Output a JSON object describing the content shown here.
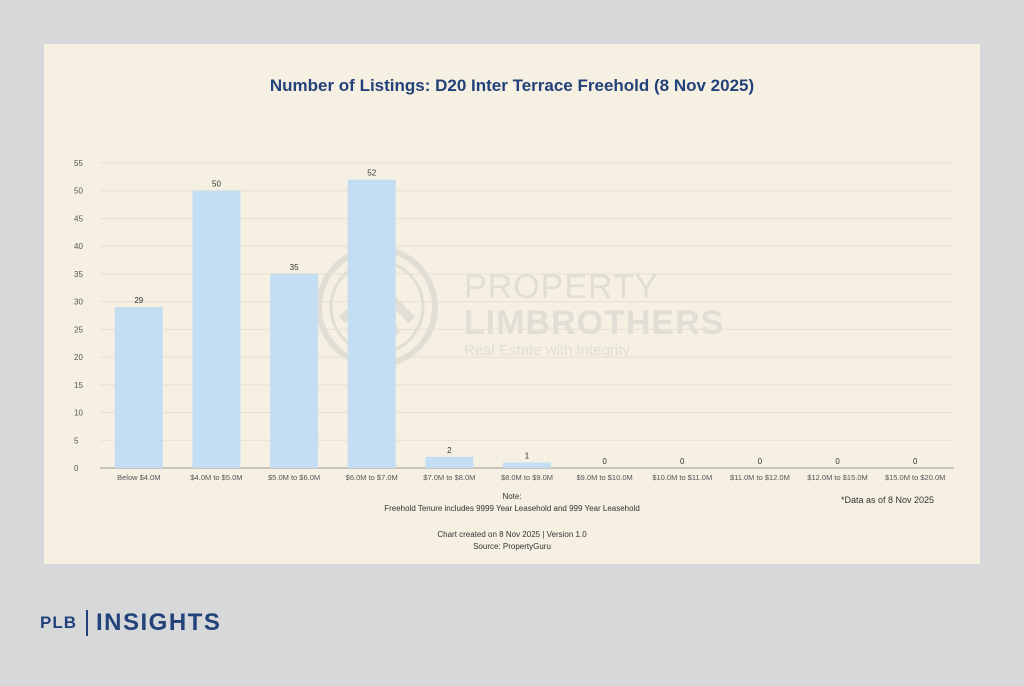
{
  "colors": {
    "bar": "#c3ddf3",
    "title": "#23427a",
    "panel_bg": "#f6f0e3",
    "page_bg": "#d6d8da",
    "grid": "#e6e0d3",
    "axis_text": "#555555"
  },
  "chart_data": {
    "type": "bar",
    "title": "Number of Listings: D20 Inter Terrace Freehold (8 Nov 2025)",
    "categories": [
      "Below $4.0M",
      "$4.0M to $5.0M",
      "$5.0M to $6.0M",
      "$6.0M to $7.0M",
      "$7.0M to $8.0M",
      "$8.0M to $9.0M",
      "$9.0M to $10.0M",
      "$10.0M to $11.0M",
      "$11.0M to $12.0M",
      "$12.0M to $15.0M",
      "$15.0M to $20.0M"
    ],
    "values": [
      29,
      50,
      35,
      52,
      2,
      1,
      0,
      0,
      0,
      0,
      0
    ],
    "ylim": [
      0,
      55
    ],
    "yticks": [
      0,
      5,
      10,
      15,
      20,
      25,
      30,
      35,
      40,
      45,
      50,
      55
    ],
    "grid": true,
    "legend": "none",
    "data_labels": true
  },
  "notes": {
    "heading": "Note:",
    "tenure": "Freehold Tenure includes 9999 Year Leasehold and 999 Year Leasehold",
    "created": "Chart created on 8 Nov 2025 | Version 1.0",
    "source": "Source: PropertyGuru",
    "as_of": "*Data as of 8 Nov 2025"
  },
  "watermark": {
    "line1": "PROPERTY",
    "line2": "LIMBROTHERS",
    "tagline": "Real Estate with Integrity"
  },
  "brand": {
    "plb": "PLB",
    "insights": "INSIGHTS",
    "icon": "lightbulb-icon"
  }
}
